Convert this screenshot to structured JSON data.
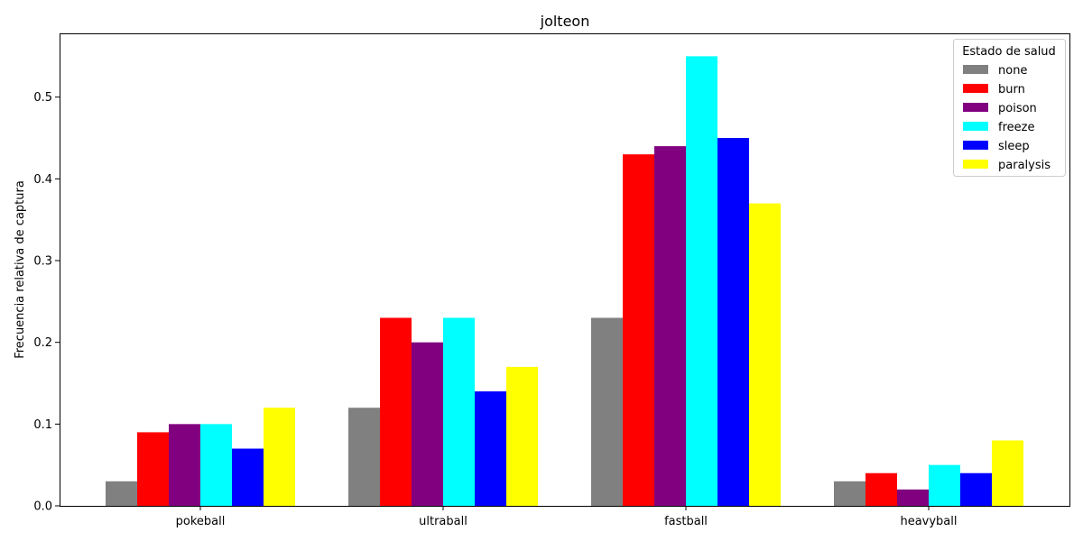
{
  "chart_data": {
    "type": "bar",
    "title": "jolteon",
    "xlabel": "",
    "ylabel": "Frecuencia relativa de captura",
    "categories": [
      "pokeball",
      "ultraball",
      "fastball",
      "heavyball"
    ],
    "ylim": [
      0,
      0.578
    ],
    "yticks": [
      0.0,
      0.1,
      0.2,
      0.3,
      0.4,
      0.5
    ],
    "ytick_labels": [
      "0.0",
      "0.1",
      "0.2",
      "0.3",
      "0.4",
      "0.5"
    ],
    "grid": false,
    "legend": {
      "title": "Estado de salud",
      "placement": "top-right"
    },
    "series": [
      {
        "name": "none",
        "color": "#808080",
        "values": [
          0.03,
          0.12,
          0.23,
          0.03
        ]
      },
      {
        "name": "burn",
        "color": "#ff0000",
        "values": [
          0.09,
          0.23,
          0.43,
          0.04
        ]
      },
      {
        "name": "poison",
        "color": "#800080",
        "values": [
          0.1,
          0.2,
          0.44,
          0.02
        ]
      },
      {
        "name": "freeze",
        "color": "#00ffff",
        "values": [
          0.1,
          0.23,
          0.55,
          0.05
        ]
      },
      {
        "name": "sleep",
        "color": "#0000ff",
        "values": [
          0.07,
          0.14,
          0.45,
          0.04
        ]
      },
      {
        "name": "paralysis",
        "color": "#ffff00",
        "values": [
          0.12,
          0.17,
          0.37,
          0.08
        ]
      }
    ]
  }
}
